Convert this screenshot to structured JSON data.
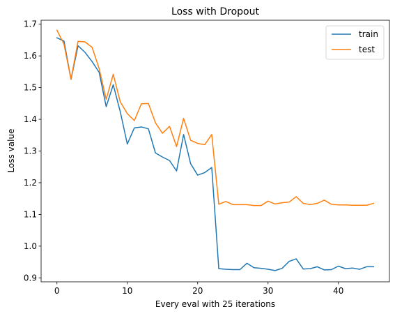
{
  "chart_data": {
    "type": "line",
    "title": "Loss with Dropout",
    "xlabel": "Every eval with 25 iterations",
    "ylabel": "Loss value",
    "xlim": [
      -2.25,
      47.25
    ],
    "ylim": [
      0.8875,
      1.7125
    ],
    "xticks": [
      0,
      10,
      20,
      30,
      40
    ],
    "yticks": [
      0.9,
      1.0,
      1.1,
      1.2,
      1.3,
      1.4,
      1.5,
      1.6,
      1.7
    ],
    "ytick_labels": [
      "0.9",
      "1.0",
      "1.1",
      "1.2",
      "1.3",
      "1.4",
      "1.5",
      "1.6",
      "1.7"
    ],
    "grid": false,
    "legend_position": "top-right",
    "x": [
      0,
      1,
      2,
      3,
      4,
      5,
      6,
      7,
      8,
      9,
      10,
      11,
      12,
      13,
      14,
      15,
      16,
      17,
      18,
      19,
      20,
      21,
      22,
      23,
      24,
      25,
      26,
      27,
      28,
      29,
      30,
      31,
      32,
      33,
      34,
      35,
      36,
      37,
      38,
      39,
      40,
      41,
      42,
      43,
      44,
      45
    ],
    "series": [
      {
        "name": "train",
        "color": "#1f77b4",
        "values": [
          1.657,
          1.647,
          1.526,
          1.632,
          1.611,
          1.582,
          1.548,
          1.44,
          1.509,
          1.424,
          1.322,
          1.373,
          1.376,
          1.37,
          1.294,
          1.281,
          1.27,
          1.237,
          1.352,
          1.26,
          1.224,
          1.232,
          1.248,
          0.929,
          0.927,
          0.926,
          0.926,
          0.946,
          0.932,
          0.93,
          0.927,
          0.923,
          0.93,
          0.952,
          0.96,
          0.928,
          0.929,
          0.935,
          0.925,
          0.926,
          0.937,
          0.929,
          0.931,
          0.927,
          0.935,
          0.935
        ]
      },
      {
        "name": "test",
        "color": "#ff7f0e",
        "values": [
          1.681,
          1.637,
          1.526,
          1.646,
          1.644,
          1.627,
          1.56,
          1.463,
          1.542,
          1.455,
          1.418,
          1.396,
          1.449,
          1.45,
          1.389,
          1.356,
          1.378,
          1.314,
          1.403,
          1.334,
          1.324,
          1.32,
          1.352,
          1.132,
          1.141,
          1.131,
          1.131,
          1.131,
          1.128,
          1.128,
          1.142,
          1.133,
          1.137,
          1.139,
          1.156,
          1.135,
          1.131,
          1.135,
          1.145,
          1.132,
          1.13,
          1.13,
          1.129,
          1.129,
          1.129,
          1.135
        ]
      }
    ]
  }
}
